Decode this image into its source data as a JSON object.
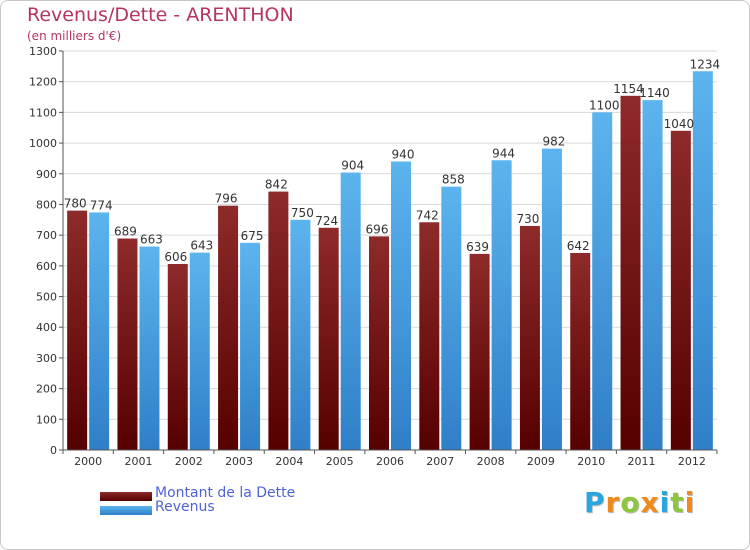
{
  "chart_data": {
    "type": "bar",
    "title": "Revenus/Dette - ARENTHON",
    "subtitle": "(en milliers d'€)",
    "xlabel": "",
    "ylabel": "",
    "categories": [
      "2000",
      "2001",
      "2002",
      "2003",
      "2004",
      "2005",
      "2006",
      "2007",
      "2008",
      "2009",
      "2010",
      "2011",
      "2012"
    ],
    "series": [
      {
        "name": "Montant de la Dette",
        "color": "#7a1c1c",
        "values": [
          780,
          689,
          606,
          796,
          842,
          724,
          696,
          742,
          639,
          730,
          642,
          1154,
          1040
        ]
      },
      {
        "name": "Revenus",
        "color": "#4aa3e6",
        "values": [
          774,
          663,
          643,
          675,
          750,
          904,
          940,
          858,
          944,
          982,
          1100,
          1140,
          1234
        ]
      }
    ],
    "ylim": [
      0,
      1300
    ],
    "yticks": [
      0,
      100,
      200,
      300,
      400,
      500,
      600,
      700,
      800,
      900,
      1000,
      1100,
      1200,
      1300
    ],
    "grid": true,
    "legend_position": "bottom-left"
  },
  "brand": {
    "letters": [
      "P",
      "r",
      "o",
      "x",
      "i",
      "t",
      "i"
    ],
    "colors": [
      "#2aa6df",
      "#f08a1c",
      "#8cc63f",
      "#f08a1c",
      "#2aa6df",
      "#8cc63f",
      "#f08a1c"
    ]
  }
}
